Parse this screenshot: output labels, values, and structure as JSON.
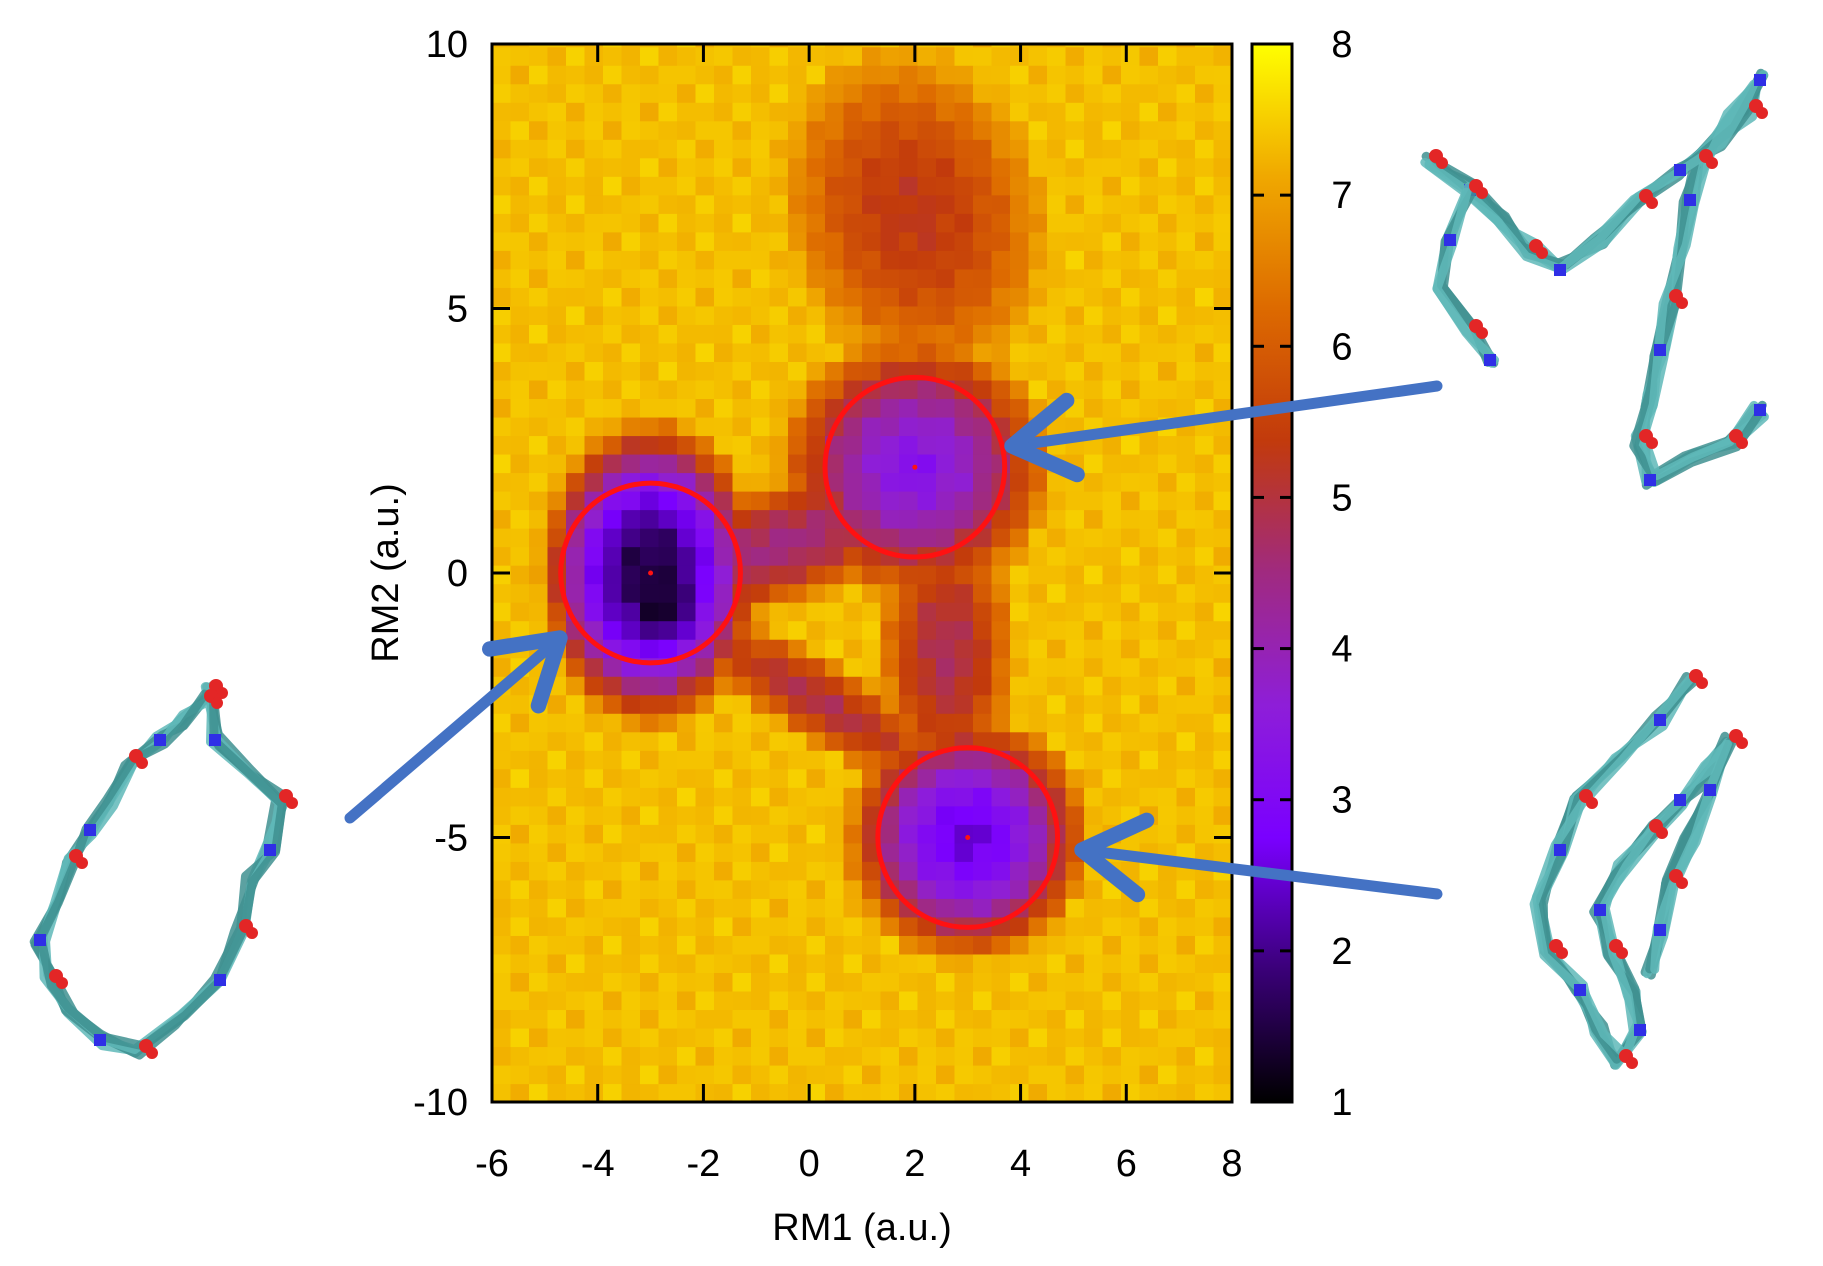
{
  "chart_data": {
    "type": "heatmap",
    "title": "",
    "xlabel": "RM1 (a.u.)",
    "ylabel": "RM2 (a.u.)",
    "xlim": [
      -6,
      8
    ],
    "ylim": [
      -10,
      10
    ],
    "x_ticks": [
      -6,
      -4,
      -2,
      0,
      2,
      4,
      6,
      8
    ],
    "y_ticks": [
      -10,
      -5,
      0,
      5,
      10
    ],
    "x_tick_labels": [
      "-6",
      "-4",
      "-2",
      "0",
      "2",
      "4",
      "6",
      "8"
    ],
    "y_tick_labels": [
      "-10",
      "-5",
      "0",
      "5",
      "10"
    ],
    "colorbar": {
      "min": 1,
      "max": 8,
      "ticks": [
        1,
        2,
        3,
        4,
        5,
        6,
        7,
        8
      ],
      "tick_labels": [
        "1",
        "2",
        "3",
        "4",
        "5",
        "6",
        "7",
        "8"
      ],
      "palette": [
        "#000000",
        "#3a0078",
        "#7a00ff",
        "#8e1ed8",
        "#a02a80",
        "#c23a0c",
        "#dd6a00",
        "#f0a800",
        "#ffff00"
      ]
    },
    "grid_cell_size": 0.35,
    "cutoff_value": 7.6,
    "basins": [
      {
        "x": -3.0,
        "y": 0.0,
        "depth": 1.45,
        "sx": 1.05,
        "sy": 1.45,
        "dx": 0.2,
        "dy": -0.55
      },
      {
        "x": 2.0,
        "y": 2.0,
        "depth": 3.4,
        "sx": 1.6,
        "sy": 1.55,
        "dx": 0.0,
        "dy": 0.0
      },
      {
        "x": 3.0,
        "y": -5.0,
        "depth": 2.6,
        "sx": 1.3,
        "sy": 1.3,
        "dx": 0.0,
        "dy": 0.0
      }
    ],
    "markers": [
      {
        "name": "basin-a-circle",
        "x": -3.0,
        "y": 0.0,
        "radius": 1.7,
        "color": "#ff1111"
      },
      {
        "name": "basin-b-circle",
        "x": 2.0,
        "y": 2.0,
        "radius": 1.7,
        "color": "#ff1111"
      },
      {
        "name": "basin-c-circle",
        "x": 3.0,
        "y": -5.0,
        "radius": 1.7,
        "color": "#ff1111"
      }
    ],
    "annotations": [
      {
        "name": "arrow-to-basin-a",
        "target": "basin-a",
        "color": "#4472c4"
      },
      {
        "name": "arrow-to-basin-b",
        "target": "basin-b",
        "color": "#4472c4"
      },
      {
        "name": "arrow-to-basin-c",
        "target": "basin-c",
        "color": "#4472c4"
      }
    ],
    "structure_images": [
      {
        "name": "structure-basin-a",
        "basin": "basin-a",
        "placement": "bottom-left"
      },
      {
        "name": "structure-basin-b",
        "basin": "basin-b",
        "placement": "top-right"
      },
      {
        "name": "structure-basin-c",
        "basin": "basin-c",
        "placement": "bottom-right"
      }
    ]
  },
  "colors": {
    "carbon": "#5fb8b8",
    "carbon_dark": "#3f9090",
    "oxygen": "#e32626",
    "nitrogen": "#2f2fe6"
  }
}
